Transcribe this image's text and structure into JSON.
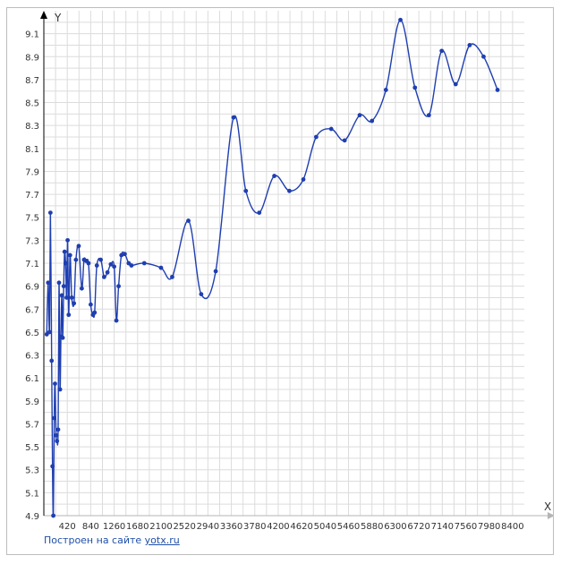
{
  "chart_data": {
    "type": "line",
    "title": "",
    "xlabel": "X",
    "ylabel": "Y",
    "xlim": [
      0,
      8610
    ],
    "ylim": [
      4.9,
      9.3
    ],
    "x_ticks": [
      420,
      840,
      1260,
      1680,
      2100,
      2520,
      2940,
      3360,
      3780,
      4200,
      4620,
      5040,
      5460,
      5880,
      6300,
      6720,
      7140,
      7560,
      7980,
      8400
    ],
    "y_ticks": [
      4.9,
      5.1,
      5.3,
      5.5,
      5.7,
      5.9,
      6.1,
      6.3,
      6.5,
      6.7,
      6.9,
      7.1,
      7.3,
      7.5,
      7.7,
      7.9,
      8.1,
      8.3,
      8.5,
      8.7,
      8.9,
      9.1
    ],
    "grid": true,
    "series": [
      {
        "color": "#1f3fb0",
        "x": [
          52,
          77,
          102,
          118,
          140,
          155,
          170,
          186,
          200,
          220,
          236,
          256,
          272,
          290,
          306,
          322,
          338,
          356,
          372,
          390,
          408,
          426,
          445,
          470,
          500,
          540,
          575,
          625,
          680,
          720,
          760,
          800,
          840,
          880,
          910,
          950,
          1020,
          1080,
          1140,
          1200,
          1260,
          1300,
          1340,
          1390,
          1450,
          1520,
          1570,
          1800,
          2100,
          2300,
          2590,
          2820,
          3080,
          3400,
          3620,
          3860,
          4130,
          4400,
          4650,
          4880,
          5150,
          5390,
          5660,
          5880,
          6130,
          6390,
          6650,
          6900,
          7130,
          7380,
          7630,
          7880,
          8130
        ],
        "y": [
          6.48,
          6.93,
          6.5,
          7.54,
          6.25,
          5.33,
          4.9,
          5.75,
          6.05,
          5.6,
          5.55,
          5.65,
          6.93,
          6.0,
          6.46,
          6.82,
          6.45,
          6.9,
          7.2,
          7.1,
          6.8,
          7.3,
          6.65,
          7.17,
          6.8,
          6.75,
          7.13,
          7.25,
          6.88,
          7.13,
          7.12,
          7.1,
          6.74,
          6.65,
          6.67,
          7.08,
          7.13,
          6.98,
          7.02,
          7.09,
          7.07,
          6.6,
          6.9,
          7.17,
          7.18,
          7.1,
          7.08,
          7.1,
          7.06,
          6.98,
          7.47,
          6.83,
          7.03,
          8.37,
          7.73,
          7.54,
          7.86,
          7.73,
          7.83,
          8.2,
          8.27,
          8.17,
          8.39,
          8.34,
          8.61,
          9.22,
          8.63,
          8.39,
          8.95,
          8.66,
          9.0,
          8.9,
          8.61
        ]
      }
    ]
  },
  "credit": {
    "text": "Построен на сайте",
    "link": "yotx.ru"
  }
}
